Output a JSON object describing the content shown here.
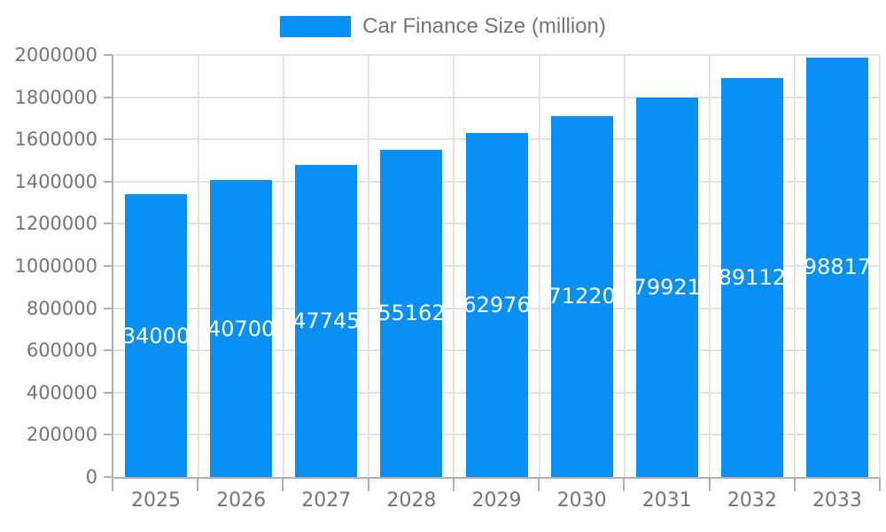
{
  "legend": {
    "items": [
      {
        "label": "Car Finance Size (million)",
        "color": "#0a90f5"
      }
    ]
  },
  "chart_data": {
    "type": "bar",
    "title": "",
    "xlabel": "",
    "ylabel": "",
    "categories": [
      "2025",
      "2026",
      "2027",
      "2028",
      "2029",
      "2030",
      "2031",
      "2032",
      "2033"
    ],
    "series": [
      {
        "name": "Car Finance Size (million)",
        "values": [
          1340000,
          1407000,
          1477450,
          1551620,
          1629760,
          1712200,
          1799210,
          1891120,
          1988170
        ]
      }
    ],
    "value_labels_visible_on_bars": [
      "34000",
      "40700",
      "47745",
      "55162",
      "62976",
      "71220",
      "79921",
      "89112",
      "98817"
    ],
    "value_label_note": "full values are drawn in white centered on each bar and clipped by the bar width",
    "ylim": [
      0,
      2000000
    ],
    "y_ticks": [
      0,
      200000,
      400000,
      600000,
      800000,
      1000000,
      1200000,
      1400000,
      1600000,
      1800000,
      2000000
    ],
    "grid": true,
    "legend_position": "top-center",
    "colors": {
      "bar": "#0a90f5",
      "axis_line": "#b0b0b0",
      "gridline": "#e2e2e2",
      "tick_label": "#757575",
      "value_label": "#ffffff"
    }
  }
}
